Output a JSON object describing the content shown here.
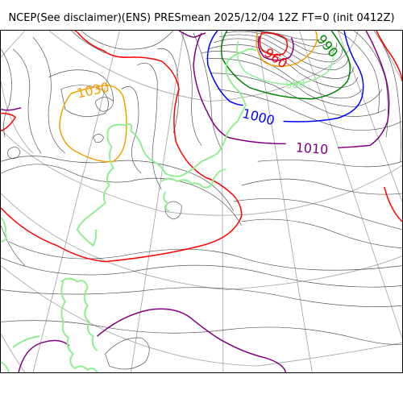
{
  "title": "NCEP(See disclaimer)(ENS) PRESmean 2025/12/04 12Z FT=0 (init 0412Z)",
  "map": {
    "variable": "PRESmean",
    "contour_labels": [
      {
        "text": "1030",
        "color": "#f0a000"
      },
      {
        "text": "1000",
        "color": "#0000ff"
      },
      {
        "text": "1010",
        "color": "#800080"
      },
      {
        "text": "960",
        "color": "#ff0000"
      },
      {
        "text": "990",
        "color": "#008000"
      },
      {
        "text": "980",
        "color": "#90ee90"
      }
    ],
    "colors": {
      "isobar_thin": "#555555",
      "graticule": "#aaaaaa",
      "coastline": "#90ee90",
      "c1030": "#f0a000",
      "c1020": "#ff0000",
      "c1010": "#800080",
      "c1000": "#0000ff",
      "c990": "#008000"
    }
  }
}
